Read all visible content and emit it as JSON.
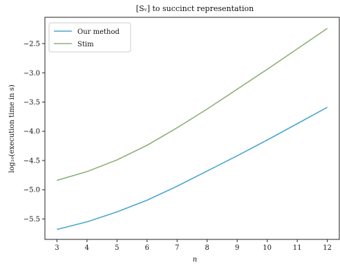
{
  "chart_data": {
    "type": "line",
    "title": "[Sᵥ] to succinct representation",
    "xlabel": "n",
    "ylabel": "log₁₀(execution time in s)",
    "x": [
      3,
      4,
      5,
      6,
      7,
      8,
      9,
      10,
      11,
      12
    ],
    "xticks": [
      "3",
      "4",
      "5",
      "6",
      "7",
      "8",
      "9",
      "10",
      "11",
      "12"
    ],
    "yticks": [
      "−5.5",
      "−5.0",
      "−4.5",
      "−4.0",
      "−3.5",
      "−3.0",
      "−2.5"
    ],
    "ytick_values": [
      -5.5,
      -5.0,
      -4.5,
      -4.0,
      -3.5,
      -3.0,
      -2.5
    ],
    "xlim": [
      2.6,
      12.4
    ],
    "ylim": [
      -5.85,
      -2.05
    ],
    "legend_position": "top-left",
    "grid": false,
    "series": [
      {
        "name": "Our method",
        "color": "#4aa6cf",
        "values": [
          -5.68,
          -5.55,
          -5.38,
          -5.18,
          -4.94,
          -4.68,
          -4.42,
          -4.15,
          -3.87,
          -3.59
        ]
      },
      {
        "name": "Stim",
        "color": "#8db07a",
        "values": [
          -4.84,
          -4.69,
          -4.49,
          -4.24,
          -3.94,
          -3.62,
          -3.28,
          -2.94,
          -2.59,
          -2.24
        ]
      }
    ]
  }
}
